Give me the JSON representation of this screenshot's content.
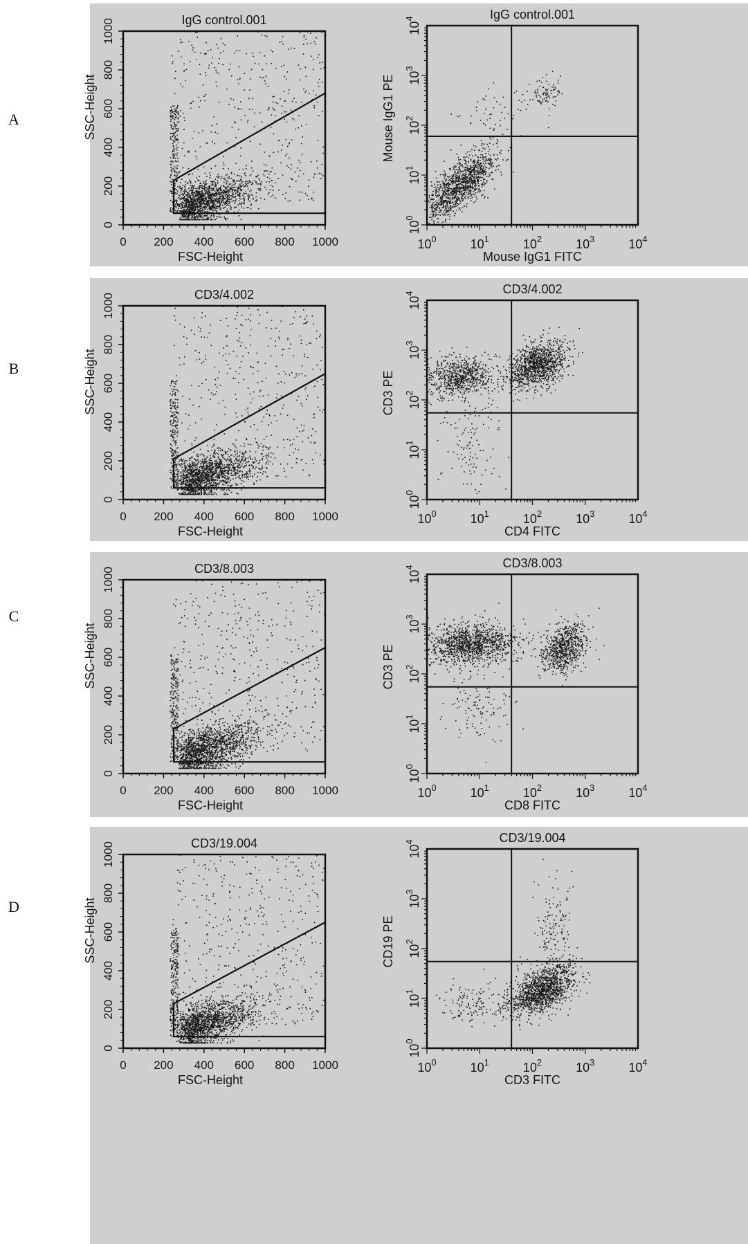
{
  "figure": {
    "rows": [
      {
        "label": "A"
      },
      {
        "label": "B"
      },
      {
        "label": "C"
      },
      {
        "label": "D"
      }
    ]
  },
  "chart_data": [
    {
      "type": "scatter",
      "panel": "A",
      "side": "scatter-linear",
      "title": "IgG control.001",
      "xlabel": "FSC-Height",
      "ylabel": "SSC-Height",
      "xlim": [
        0,
        1000
      ],
      "ylim": [
        0,
        1000
      ],
      "xticks": [
        "0",
        "200",
        "400",
        "600",
        "800",
        "1000"
      ],
      "yticks": [
        "0",
        "200",
        "400",
        "600",
        "800",
        "1000"
      ],
      "gate": {
        "polygon": [
          [
            250,
            60
          ],
          [
            1000,
            60
          ],
          [
            1000,
            680
          ],
          [
            250,
            230
          ]
        ]
      },
      "points_description": "dense population FSC 250-700, SSC 50-350; sparse scatter above"
    },
    {
      "type": "scatter",
      "panel": "A",
      "side": "quadrant-log",
      "title": "IgG control.001",
      "xlabel": "Mouse IgG1 FITC",
      "ylabel": "Mouse IgG1 PE",
      "xscale": "log",
      "yscale": "log",
      "xlim": [
        1,
        10000
      ],
      "ylim": [
        1,
        10000
      ],
      "xticks": [
        "10^0",
        "10^1",
        "10^2",
        "10^3",
        "10^4"
      ],
      "yticks": [
        "10^0",
        "10^1",
        "10^2",
        "10^3",
        "10^4"
      ],
      "quadrant": {
        "x": 40,
        "y": 60
      },
      "points_description": "main cluster lower-left quadrant; small cluster upper-right near x 100-300, y 300-700"
    },
    {
      "type": "scatter",
      "panel": "B",
      "side": "scatter-linear",
      "title": "CD3/4.002",
      "xlabel": "FSC-Height",
      "ylabel": "SSC-Height",
      "xlim": [
        0,
        1000
      ],
      "ylim": [
        0,
        1000
      ],
      "xticks": [
        "0",
        "200",
        "400",
        "600",
        "800",
        "1000"
      ],
      "yticks": [
        "0",
        "200",
        "400",
        "600",
        "800",
        "1000"
      ],
      "gate": {
        "polygon": [
          [
            250,
            60
          ],
          [
            1000,
            60
          ],
          [
            1000,
            650
          ],
          [
            250,
            210
          ]
        ]
      },
      "points_description": "dense population FSC 220-800, SSC 50-400; broad scatter above"
    },
    {
      "type": "scatter",
      "panel": "B",
      "side": "quadrant-log",
      "title": "CD3/4.002",
      "xlabel": "CD4 FITC",
      "ylabel": "CD3 PE",
      "xscale": "log",
      "yscale": "log",
      "xlim": [
        1,
        10000
      ],
      "ylim": [
        1,
        10000
      ],
      "xticks": [
        "10^0",
        "10^1",
        "10^2",
        "10^3",
        "10^4"
      ],
      "yticks": [
        "10^0",
        "10^1",
        "10^2",
        "10^3",
        "10^4"
      ],
      "quadrant": {
        "x": 40,
        "y": 55
      },
      "points_description": "upper-left cluster (CD3+CD4-), dense upper-right cluster (CD3+CD4+), sparse lower-left"
    },
    {
      "type": "scatter",
      "panel": "C",
      "side": "scatter-linear",
      "title": "CD3/8.003",
      "xlabel": "FSC-Height",
      "ylabel": "SSC-Height",
      "xlim": [
        0,
        1000
      ],
      "ylim": [
        0,
        1000
      ],
      "xticks": [
        "0",
        "200",
        "400",
        "600",
        "800",
        "1000"
      ],
      "yticks": [
        "0",
        "200",
        "400",
        "600",
        "800",
        "1000"
      ],
      "gate": {
        "polygon": [
          [
            250,
            60
          ],
          [
            1000,
            60
          ],
          [
            1000,
            650
          ],
          [
            250,
            230
          ]
        ]
      },
      "points_description": "dense population FSC 220-800, SSC 50-400; sparse scatter above"
    },
    {
      "type": "scatter",
      "panel": "C",
      "side": "quadrant-log",
      "title": "CD3/8.003",
      "xlabel": "CD8 FITC",
      "ylabel": "CD3 PE",
      "xscale": "log",
      "yscale": "log",
      "xlim": [
        1,
        10000
      ],
      "ylim": [
        1,
        10000
      ],
      "xticks": [
        "10^0",
        "10^1",
        "10^2",
        "10^3",
        "10^4"
      ],
      "yticks": [
        "10^0",
        "10^1",
        "10^2",
        "10^3",
        "10^4"
      ],
      "quadrant": {
        "x": 40,
        "y": 55
      },
      "points_description": "large upper-left cluster (CD3+CD8-), upper-right cluster near x 300-800 (CD3+CD8+), sparse lower-left"
    },
    {
      "type": "scatter",
      "panel": "D",
      "side": "scatter-linear",
      "title": "CD3/19.004",
      "xlabel": "FSC-Height",
      "ylabel": "SSC-Height",
      "xlim": [
        0,
        1000
      ],
      "ylim": [
        0,
        1000
      ],
      "xticks": [
        "0",
        "200",
        "400",
        "600",
        "800",
        "1000"
      ],
      "yticks": [
        "0",
        "200",
        "400",
        "600",
        "800",
        "1000"
      ],
      "gate": {
        "polygon": [
          [
            250,
            60
          ],
          [
            1000,
            60
          ],
          [
            1000,
            650
          ],
          [
            250,
            230
          ]
        ]
      },
      "points_description": "dense population FSC 250-800, SSC 50-400; sparse scatter above"
    },
    {
      "type": "scatter",
      "panel": "D",
      "side": "quadrant-log",
      "title": "CD3/19.004",
      "xlabel": "CD3 FITC",
      "ylabel": "CD19 PE",
      "xscale": "log",
      "yscale": "log",
      "xlim": [
        1,
        10000
      ],
      "ylim": [
        1,
        10000
      ],
      "xticks": [
        "10^0",
        "10^1",
        "10^2",
        "10^3",
        "10^4"
      ],
      "yticks": [
        "10^0",
        "10^1",
        "10^2",
        "10^3",
        "10^4"
      ],
      "quadrant": {
        "x": 40,
        "y": 55
      },
      "points_description": "dense lower-right cluster near x 50-500, y 5-50 (CD3+CD19-); sparse lower-left; streak into upper-right"
    }
  ]
}
